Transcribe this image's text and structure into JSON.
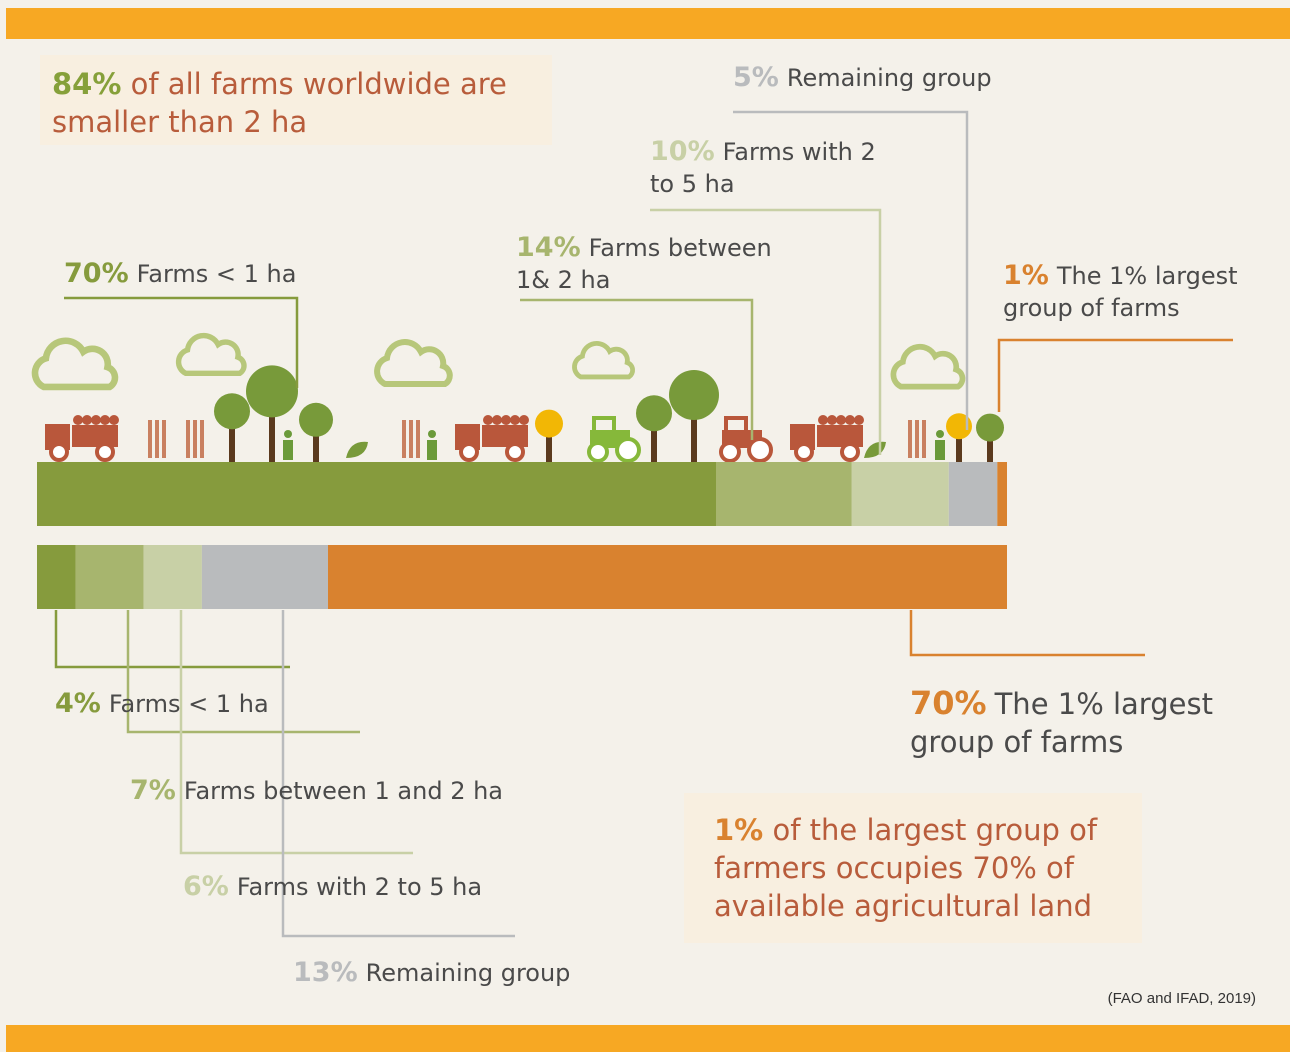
{
  "chart_data": {
    "type": "stacked-bar",
    "headline": {
      "emphasis": "84%",
      "text": "of all farms worldwide are smaller than 2 ha"
    },
    "bars": [
      {
        "segments": [
          {
            "value": 70,
            "value_label": "70%",
            "label": "Farms < 1 ha",
            "color": "#869b3d"
          },
          {
            "value": 14,
            "value_label": "14%",
            "label": "Farms between 1& 2 ha",
            "color": "#a7b56e"
          },
          {
            "value": 10,
            "value_label": "10%",
            "label": "Farms with 2 to 5 ha",
            "color": "#c8d0a6"
          },
          {
            "value": 5,
            "value_label": "5%",
            "label": "Remaining group",
            "color": "#b9bbbd"
          },
          {
            "value": 1,
            "value_label": "1%",
            "label": "The 1% largest group of farms",
            "color": "#d9822f"
          }
        ]
      },
      {
        "segments": [
          {
            "value": 4,
            "value_label": "4%",
            "label": "Farms < 1 ha",
            "color": "#869b3d"
          },
          {
            "value": 7,
            "value_label": "7%",
            "label": "Farms between 1 and 2 ha",
            "color": "#a7b56e"
          },
          {
            "value": 6,
            "value_label": "6%",
            "label": "Farms with 2 to 5 ha",
            "color": "#c8d0a6"
          },
          {
            "value": 13,
            "value_label": "13%",
            "label": "Remaining group",
            "color": "#b9bbbd"
          },
          {
            "value": 70,
            "value_label": "70%",
            "label": "The 1% largest group of farms",
            "color": "#d9822f"
          }
        ]
      }
    ],
    "callout": {
      "emphasis": "1%",
      "text": "of the largest group of farmers occupies 70% of available agricultural land"
    },
    "source": "(FAO and IFAD, 2019)"
  }
}
